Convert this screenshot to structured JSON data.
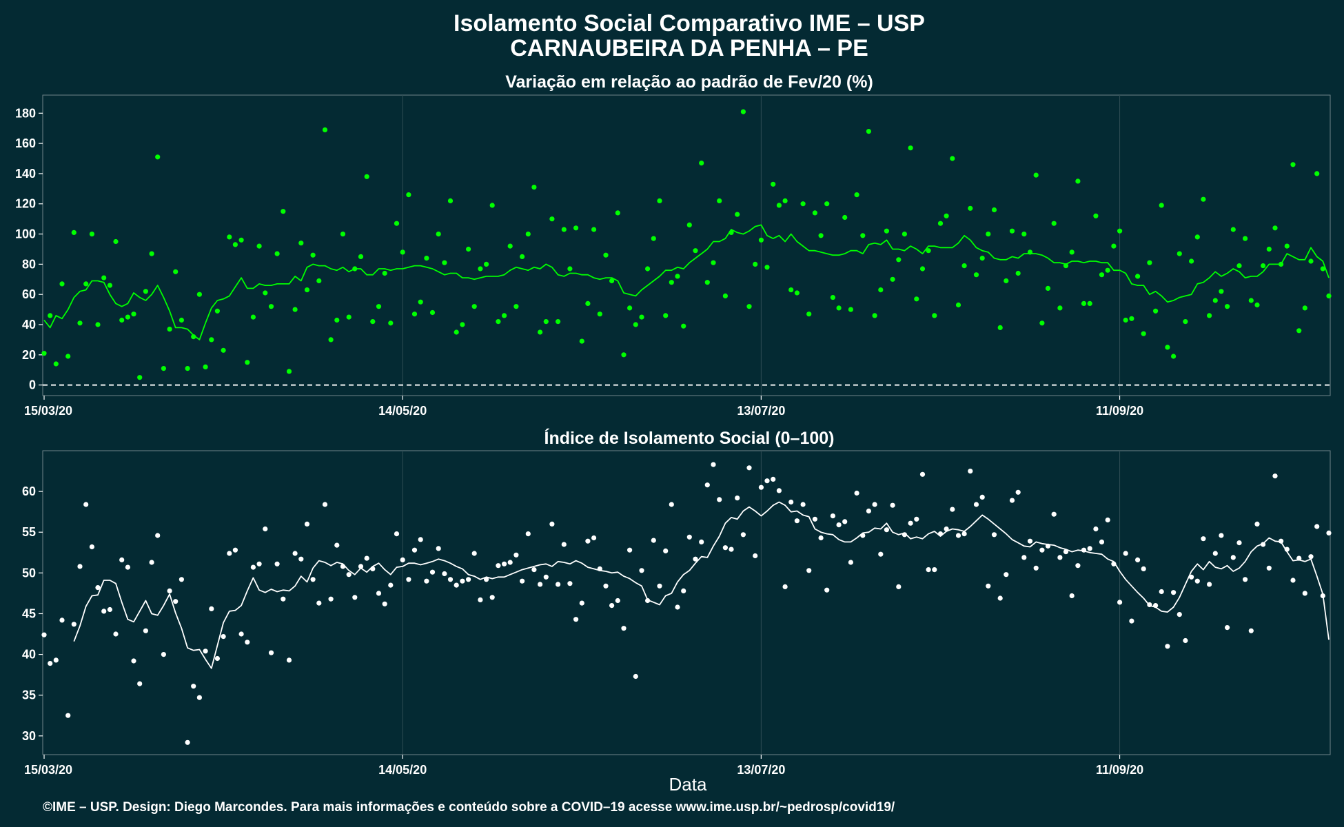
{
  "title_line1": "Isolamento Social Comparativo IME – USP",
  "title_line2": "CARNAUBEIRA DA PENHA – PE",
  "xlabel": "Data",
  "caption": "©IME – USP. Design: Diego Marcondes. Para mais informações e conteúdo sobre a COVID–19 acesse www.ime.usp.br/~pedrosp/covid19/",
  "colors": {
    "background": "#042a33",
    "green": "#00ff00",
    "white": "#ffffff"
  },
  "chart_data": [
    {
      "type": "scatter",
      "title": "Variação em relação ao padrão de Fev/20 (%)",
      "x_start": "15/03/20",
      "x_tick_labels": [
        "15/03/20",
        "14/05/20",
        "13/07/20",
        "11/09/20"
      ],
      "y_ticks": [
        0,
        20,
        40,
        60,
        80,
        100,
        120,
        140,
        160,
        180
      ],
      "ylim": [
        -7,
        192
      ],
      "reference_line": 0,
      "color": "#00ff00",
      "series": [
        {
          "type": "scatter",
          "values": [
            21,
            46,
            14,
            67,
            19,
            101,
            41,
            67,
            100,
            40,
            71,
            66,
            95,
            43,
            45,
            47,
            5,
            62,
            87,
            151,
            11,
            37,
            75,
            43,
            11,
            32,
            60,
            12,
            30,
            49,
            23,
            98,
            93,
            96,
            15,
            45,
            92,
            61,
            52,
            87,
            115,
            9,
            50,
            94,
            63,
            86,
            69,
            169,
            30,
            43,
            100,
            45,
            77,
            85,
            138,
            42,
            52,
            74,
            41,
            107,
            88,
            126,
            47,
            55,
            84,
            48,
            100,
            81,
            122,
            35,
            40,
            90,
            52,
            77,
            80,
            119,
            42,
            46,
            92,
            52,
            85,
            100,
            131,
            35,
            42,
            110,
            42,
            103,
            77,
            104,
            29,
            54,
            103,
            47,
            86,
            69,
            114,
            20,
            51,
            40,
            45,
            77,
            97,
            122,
            46,
            68,
            72,
            39,
            106,
            89,
            147,
            68,
            81,
            122,
            59,
            101,
            113,
            181,
            52,
            80,
            96,
            78,
            133,
            119,
            122,
            63,
            61,
            120,
            47,
            114,
            99,
            120,
            58,
            51,
            111,
            50,
            126,
            99,
            168,
            46,
            63,
            102,
            70,
            83,
            100,
            157,
            57,
            77,
            89,
            46,
            107,
            112,
            150,
            53,
            79,
            117,
            73,
            84,
            100,
            116,
            38,
            69,
            102,
            74,
            100,
            88,
            139,
            41,
            64,
            107,
            51,
            79,
            88,
            135,
            54,
            54,
            112,
            73,
            76,
            92,
            102,
            43,
            44,
            72,
            34,
            81,
            49,
            119,
            25,
            19,
            87,
            42,
            82,
            98,
            123,
            46,
            56,
            62,
            52,
            103,
            79,
            97,
            56,
            53,
            79,
            90,
            104,
            80,
            92,
            146,
            36,
            51,
            82,
            140,
            77,
            59
          ]
        },
        {
          "type": "line",
          "values": [
            43,
            38,
            46,
            44,
            50,
            58,
            62,
            63,
            69,
            69,
            68,
            60,
            54,
            52,
            54,
            61,
            58,
            56,
            60,
            66,
            58,
            49,
            38,
            38,
            37,
            33,
            30,
            41,
            51,
            56,
            57,
            59,
            65,
            71,
            64,
            64,
            67,
            66,
            66,
            67,
            67,
            67,
            72,
            69,
            78,
            80,
            79,
            79,
            77,
            76,
            78,
            75,
            77,
            77,
            73,
            73,
            77,
            77,
            76,
            77,
            77,
            78,
            79,
            79,
            78,
            77,
            75,
            73,
            74,
            74,
            71,
            71,
            70,
            71,
            72,
            72,
            72,
            73,
            76,
            78,
            77,
            76,
            78,
            77,
            80,
            78,
            73,
            72,
            74,
            74,
            73,
            73,
            71,
            70,
            71,
            71,
            69,
            61,
            60,
            59,
            63,
            66,
            69,
            72,
            76,
            76,
            78,
            77,
            81,
            84,
            87,
            90,
            95,
            95,
            97,
            103,
            101,
            100,
            102,
            105,
            106,
            99,
            97,
            99,
            95,
            100,
            95,
            92,
            89,
            89,
            88,
            87,
            86,
            86,
            87,
            89,
            89,
            87,
            93,
            94,
            93,
            96,
            90,
            90,
            89,
            92,
            90,
            87,
            92,
            92,
            91,
            91,
            91,
            94,
            99,
            96,
            91,
            89,
            88,
            84,
            83,
            83,
            85,
            84,
            87,
            87,
            87,
            86,
            84,
            81,
            81,
            80,
            82,
            82,
            81,
            82,
            82,
            81,
            81,
            76,
            76,
            74,
            67,
            66,
            66,
            60,
            62,
            59,
            55,
            56,
            58,
            59,
            60,
            67,
            68,
            71,
            75,
            72,
            74,
            77,
            75,
            71,
            72,
            72,
            75,
            80,
            80,
            80,
            87,
            85,
            83,
            83,
            91,
            85,
            82,
            71
          ]
        }
      ]
    },
    {
      "type": "scatter",
      "title": "Índice de Isolamento Social (0–100)",
      "x_start": "15/03/20",
      "x_tick_labels": [
        "15/03/20",
        "14/05/20",
        "13/07/20",
        "11/09/20"
      ],
      "y_ticks": [
        30,
        35,
        40,
        45,
        50,
        55,
        60
      ],
      "ylim": [
        27.7,
        65
      ],
      "xlabel": "Data",
      "color": "#ffffff",
      "series": [
        {
          "type": "scatter",
          "values": [
            42.4,
            38.9,
            39.3,
            44.2,
            32.5,
            43.7,
            50.8,
            58.4,
            53.2,
            48.2,
            45.3,
            45.5,
            42.5,
            51.6,
            50.7,
            39.2,
            36.4,
            42.9,
            51.3,
            54.6,
            40.0,
            47.8,
            46.5,
            49.2,
            29.2,
            36.1,
            34.7,
            40.4,
            45.6,
            39.5,
            42.2,
            52.4,
            52.8,
            42.5,
            41.5,
            50.7,
            51.1,
            55.4,
            40.2,
            51.1,
            46.8,
            39.3,
            52.4,
            51.7,
            56.0,
            49.2,
            46.3,
            58.4,
            46.8,
            53.4,
            50.8,
            49.8,
            47.0,
            50.8,
            51.8,
            50.5,
            47.5,
            46.2,
            48.5,
            54.8,
            51.6,
            49.2,
            52.8,
            54.1,
            49.0,
            50.1,
            53.0,
            49.9,
            49.2,
            48.5,
            49.0,
            49.2,
            52.4,
            46.7,
            49.2,
            47.0,
            50.9,
            51.1,
            51.3,
            52.2,
            49.0,
            54.8,
            50.4,
            48.6,
            49.5,
            56.0,
            48.6,
            53.5,
            48.7,
            44.3,
            46.3,
            53.9,
            54.3,
            50.5,
            48.4,
            46.0,
            46.6,
            43.2,
            52.8,
            37.3,
            50.3,
            46.6,
            54.0,
            48.4,
            52.7,
            58.4,
            45.8,
            47.8,
            54.4,
            51.7,
            53.8,
            60.8,
            63.3,
            59.0,
            53.1,
            52.9,
            59.2,
            54.7,
            62.9,
            52.1,
            60.5,
            61.3,
            61.5,
            60.1,
            48.3,
            58.7,
            56.4,
            58.4,
            50.3,
            56.6,
            54.3,
            47.9,
            57.0,
            55.9,
            56.3,
            51.3,
            59.8,
            54.6,
            57.6,
            58.4,
            52.3,
            55.3,
            58.3,
            48.3,
            54.7,
            56.1,
            56.6,
            62.1,
            50.4,
            50.4,
            54.8,
            55.4,
            57.8,
            54.6,
            54.8,
            62.5,
            58.4,
            59.3,
            48.4,
            54.7,
            46.9,
            49.8,
            58.9,
            59.9,
            51.9,
            53.9,
            50.6,
            52.8,
            53.3,
            57.2,
            51.9,
            52.6,
            47.2,
            50.9,
            52.8,
            53.0,
            55.4,
            53.8,
            56.5,
            51.1,
            46.4,
            52.4,
            44.1,
            51.6,
            50.5,
            46.1,
            46.0,
            47.7,
            41.0,
            47.6,
            44.9,
            41.7,
            49.5,
            49.0,
            54.2,
            48.6,
            52.4,
            54.6,
            43.3,
            51.9,
            53.7,
            49.2,
            42.9,
            56.0,
            53.5,
            50.6,
            61.9,
            53.9,
            52.9,
            49.1,
            51.8,
            47.5,
            52.0,
            55.7,
            47.2,
            54.9
          ]
        },
        {
          "type": "line",
          "values": [
            41.6,
            43.5,
            45.9,
            47.2,
            47.3,
            49.1,
            49.1,
            48.7,
            46.4,
            44.3,
            44.0,
            45.3,
            46.6,
            45.0,
            44.8,
            46.0,
            47.4,
            45.1,
            43.2,
            40.8,
            40.5,
            40.6,
            39.4,
            38.3,
            41.1,
            43.9,
            45.3,
            45.4,
            46.0,
            47.8,
            49.4,
            47.9,
            47.6,
            48.0,
            47.7,
            47.9,
            47.8,
            48.4,
            49.6,
            48.9,
            50.6,
            51.5,
            51.3,
            50.9,
            51.3,
            51.1,
            50.3,
            49.8,
            50.6,
            50.1,
            50.8,
            51.2,
            50.4,
            49.8,
            50.7,
            50.8,
            51.2,
            51.2,
            51.0,
            51.2,
            51.4,
            51.7,
            51.5,
            51.2,
            50.8,
            50.5,
            49.8,
            49.6,
            49.2,
            49.5,
            49.3,
            49.5,
            49.5,
            49.8,
            50.1,
            50.4,
            50.6,
            50.8,
            51.0,
            51.1,
            50.8,
            51.4,
            51.3,
            51.1,
            51.5,
            51.2,
            50.7,
            50.5,
            50.3,
            50.2,
            50.0,
            50.1,
            49.6,
            49.3,
            48.8,
            48.4,
            46.7,
            46.4,
            46.1,
            47.2,
            47.5,
            48.9,
            49.8,
            50.3,
            51.2,
            52.0,
            51.9,
            53.3,
            54.5,
            56.1,
            56.8,
            56.6,
            57.6,
            58.1,
            57.6,
            57.0,
            57.6,
            58.3,
            58.7,
            58.3,
            57.5,
            57.6,
            57.1,
            56.9,
            55.4,
            55.0,
            54.8,
            54.7,
            54.1,
            53.8,
            53.8,
            54.3,
            54.9,
            55.0,
            55.5,
            55.4,
            56.1,
            55.0,
            54.7,
            54.9,
            54.2,
            54.4,
            54.2,
            54.8,
            55.1,
            54.5,
            55.1,
            55.4,
            55.3,
            55.1,
            55.7,
            56.4,
            57.1,
            56.6,
            56.0,
            55.4,
            54.8,
            54.1,
            53.7,
            53.3,
            53.2,
            53.8,
            53.6,
            53.5,
            53.4,
            53.1,
            52.9,
            52.6,
            52.8,
            52.7,
            52.5,
            52.4,
            52.3,
            51.7,
            51.4,
            50.2,
            49.2,
            48.4,
            47.6,
            46.9,
            46.0,
            45.8,
            45.3,
            45.2,
            45.8,
            47.0,
            48.6,
            50.2,
            51.1,
            50.4,
            51.4,
            50.7,
            50.5,
            50.9,
            50.2,
            50.6,
            51.4,
            52.6,
            53.3,
            53.6,
            54.3,
            53.9,
            53.8,
            52.6,
            51.5,
            51.6,
            51.4,
            51.7,
            49.6,
            47.4,
            41.8
          ]
        }
      ]
    }
  ]
}
